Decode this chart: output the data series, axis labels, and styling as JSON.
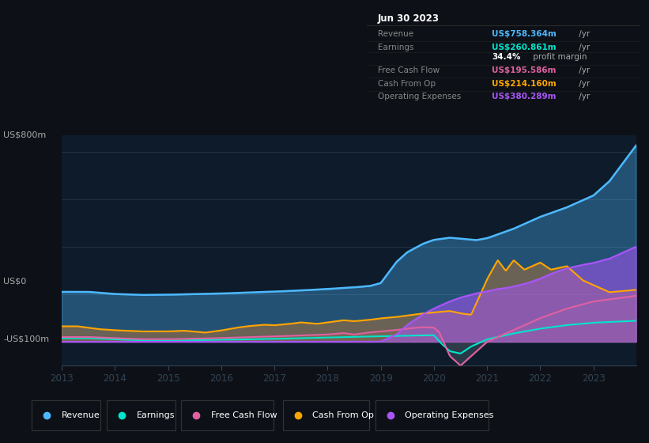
{
  "bg_color": "#0d1117",
  "plot_bg_color": "#0d1b2a",
  "y_label_top": "US$800m",
  "y_label_zero": "US$0",
  "y_label_neg": "-US$100m",
  "x_ticks": [
    "2013",
    "2014",
    "2015",
    "2016",
    "2017",
    "2018",
    "2019",
    "2020",
    "2021",
    "2022",
    "2023"
  ],
  "legend": [
    {
      "label": "Revenue",
      "color": "#4db8ff"
    },
    {
      "label": "Earnings",
      "color": "#00e5cc"
    },
    {
      "label": "Free Cash Flow",
      "color": "#e060a0"
    },
    {
      "label": "Cash From Op",
      "color": "#ffa500"
    },
    {
      "label": "Operating Expenses",
      "color": "#a855f7"
    }
  ],
  "ylim": [
    -100,
    870
  ],
  "xlim": [
    0,
    10.8
  ],
  "info_title": "Jun 30 2023",
  "info_rows": [
    {
      "label": "Revenue",
      "value": "US$758.364m",
      "suffix": " /yr",
      "color": "#4db8ff"
    },
    {
      "label": "Earnings",
      "value": "US$260.861m",
      "suffix": " /yr",
      "color": "#00e5cc"
    },
    {
      "label": "",
      "value": "34.4%",
      "suffix": " profit margin",
      "color": "#ffffff",
      "suffix_color": "#aaaaaa"
    },
    {
      "label": "Free Cash Flow",
      "value": "US$195.586m",
      "suffix": " /yr",
      "color": "#e060a0"
    },
    {
      "label": "Cash From Op",
      "value": "US$214.160m",
      "suffix": " /yr",
      "color": "#ffa500"
    },
    {
      "label": "Operating Expenses",
      "value": "US$380.289m",
      "suffix": " /yr",
      "color": "#a855f7"
    }
  ]
}
